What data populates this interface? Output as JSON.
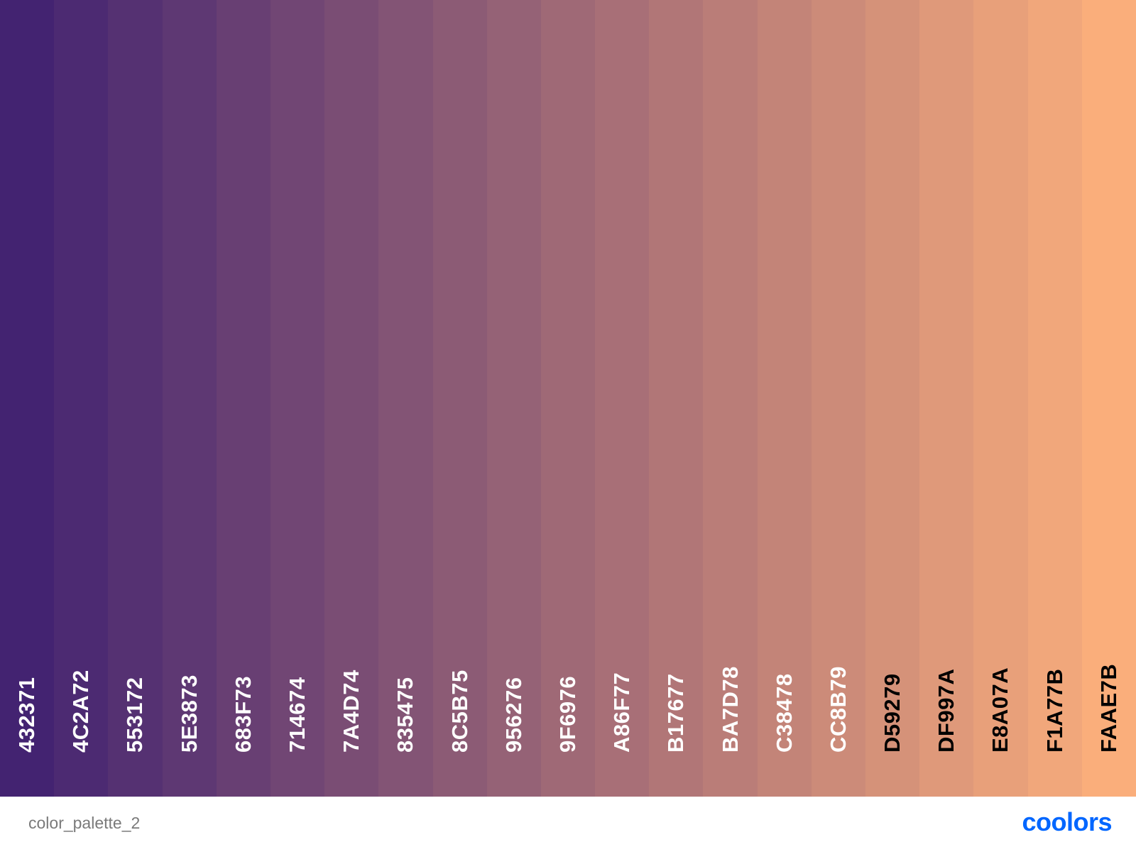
{
  "palette": {
    "swatches": [
      {
        "code": "432371",
        "bg": "#432371",
        "text_color": "#ffffff"
      },
      {
        "code": "4C2A72",
        "bg": "#4C2A72",
        "text_color": "#ffffff"
      },
      {
        "code": "553172",
        "bg": "#553172",
        "text_color": "#ffffff"
      },
      {
        "code": "5E3873",
        "bg": "#5E3873",
        "text_color": "#ffffff"
      },
      {
        "code": "683F73",
        "bg": "#683F73",
        "text_color": "#ffffff"
      },
      {
        "code": "714674",
        "bg": "#714674",
        "text_color": "#ffffff"
      },
      {
        "code": "7A4D74",
        "bg": "#7A4D74",
        "text_color": "#ffffff"
      },
      {
        "code": "835475",
        "bg": "#835475",
        "text_color": "#ffffff"
      },
      {
        "code": "8C5B75",
        "bg": "#8C5B75",
        "text_color": "#ffffff"
      },
      {
        "code": "956276",
        "bg": "#956276",
        "text_color": "#ffffff"
      },
      {
        "code": "9F6976",
        "bg": "#9F6976",
        "text_color": "#ffffff"
      },
      {
        "code": "A86F77",
        "bg": "#A86F77",
        "text_color": "#ffffff"
      },
      {
        "code": "B17677",
        "bg": "#B17677",
        "text_color": "#ffffff"
      },
      {
        "code": "BA7D78",
        "bg": "#BA7D78",
        "text_color": "#ffffff"
      },
      {
        "code": "C38478",
        "bg": "#C38478",
        "text_color": "#ffffff"
      },
      {
        "code": "CC8B79",
        "bg": "#CC8B79",
        "text_color": "#ffffff"
      },
      {
        "code": "D59279",
        "bg": "#D59279",
        "text_color": "#000000"
      },
      {
        "code": "DF997A",
        "bg": "#DF997A",
        "text_color": "#000000"
      },
      {
        "code": "E8A07A",
        "bg": "#E8A07A",
        "text_color": "#000000"
      },
      {
        "code": "F1A77B",
        "bg": "#F1A77B",
        "text_color": "#000000"
      },
      {
        "code": "FAAE7B",
        "bg": "#FAAE7B",
        "text_color": "#000000"
      }
    ]
  },
  "footer": {
    "palette_name": "color_palette_2",
    "brand": "coolors",
    "brand_color": "#0066ff"
  }
}
